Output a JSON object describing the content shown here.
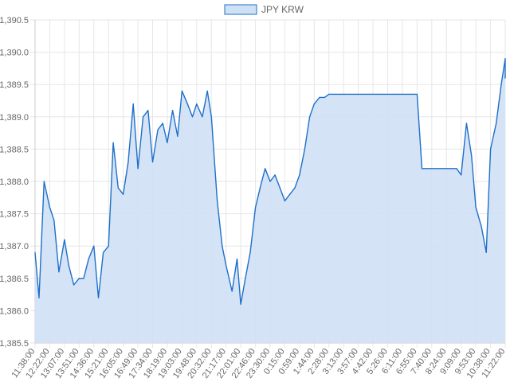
{
  "chart_data": {
    "type": "area",
    "title": "",
    "xlabel": "",
    "ylabel": "",
    "legend": {
      "position": "top-center",
      "entries": [
        "JPY KRW"
      ]
    },
    "grid": true,
    "colors": {
      "line": "#1f6fc9",
      "fill": "#cfe1f5",
      "grid": "#e6e6e6",
      "text": "#666666"
    },
    "ylim": [
      1385.5,
      1390.5
    ],
    "y_ticks": [
      "1,385.5",
      "1,386.0",
      "1,386.5",
      "1,387.0",
      "1,387.5",
      "1,388.0",
      "1,388.5",
      "1,389.0",
      "1,389.5",
      "1,390.0",
      "1,390.5"
    ],
    "x_ticks": [
      "11:38:00",
      "12:22:00",
      "13:07:00",
      "13:51:00",
      "14:36:00",
      "15:21:00",
      "16:05:00",
      "16:49:00",
      "17:34:00",
      "18:19:00",
      "19:03:00",
      "19:48:00",
      "20:32:00",
      "21:17:00",
      "22:01:00",
      "22:46:00",
      "23:30:00",
      "0:15:00",
      "0:59:00",
      "1:44:00",
      "2:28:00",
      "3:13:00",
      "3:57:00",
      "4:42:00",
      "5:26:00",
      "6:11:00",
      "6:55:00",
      "7:40:00",
      "8:24:00",
      "9:09:00",
      "9:53:00",
      "10:38:00",
      "11:22:00"
    ],
    "series": [
      {
        "name": "JPY KRW",
        "x": [
          "11:38:00",
          "11:50:00",
          "12:05:00",
          "12:22:00",
          "12:35:00",
          "12:50:00",
          "13:07:00",
          "13:20:00",
          "13:35:00",
          "13:51:00",
          "14:05:00",
          "14:20:00",
          "14:36:00",
          "14:50:00",
          "15:05:00",
          "15:21:00",
          "15:35:00",
          "15:50:00",
          "16:05:00",
          "16:20:00",
          "16:35:00",
          "16:49:00",
          "17:05:00",
          "17:20:00",
          "17:34:00",
          "17:50:00",
          "18:05:00",
          "18:19:00",
          "18:35:00",
          "18:50:00",
          "19:03:00",
          "19:20:00",
          "19:35:00",
          "19:48:00",
          "20:05:00",
          "20:20:00",
          "20:32:00",
          "20:50:00",
          "21:05:00",
          "21:17:00",
          "21:35:00",
          "21:50:00",
          "22:01:00",
          "22:15:00",
          "22:30:00",
          "22:46:00",
          "23:00:00",
          "23:15:00",
          "23:30:00",
          "23:45:00",
          "0:00:00",
          "0:15:00",
          "0:30:00",
          "0:45:00",
          "0:59:00",
          "1:15:00",
          "1:30:00",
          "1:44:00",
          "2:00:00",
          "2:15:00",
          "2:28:00",
          "2:45:00",
          "3:00:00",
          "3:13:00",
          "3:30:00",
          "3:45:00",
          "3:57:00",
          "4:15:00",
          "4:30:00",
          "4:42:00",
          "5:00:00",
          "5:15:00",
          "5:26:00",
          "5:45:00",
          "6:00:00",
          "6:11:00",
          "6:30:00",
          "6:45:00",
          "6:55:00",
          "7:10:00",
          "7:25:00",
          "7:40:00",
          "7:55:00",
          "8:10:00",
          "8:24:00",
          "8:40:00",
          "8:55:00",
          "9:09:00",
          "9:25:00",
          "9:40:00",
          "9:53:00",
          "10:10:00",
          "10:25:00",
          "10:38:00",
          "10:55:00",
          "11:10:00",
          "11:22:00",
          "11:30:00"
        ],
        "values": [
          1386.9,
          1386.2,
          1388.0,
          1387.6,
          1387.4,
          1386.6,
          1387.1,
          1386.7,
          1386.4,
          1386.5,
          1386.5,
          1386.8,
          1387.0,
          1386.2,
          1386.9,
          1387.0,
          1388.6,
          1387.9,
          1387.8,
          1388.3,
          1389.2,
          1388.2,
          1389.0,
          1389.1,
          1388.3,
          1388.8,
          1388.9,
          1388.6,
          1389.1,
          1388.7,
          1389.4,
          1389.2,
          1389.0,
          1389.2,
          1389.0,
          1389.4,
          1389.0,
          1387.7,
          1387.0,
          1386.7,
          1386.3,
          1386.8,
          1386.1,
          1386.5,
          1386.9,
          1387.6,
          1387.9,
          1388.2,
          1388.0,
          1388.1,
          1387.9,
          1387.7,
          1387.8,
          1387.9,
          1388.1,
          1388.5,
          1389.0,
          1389.2,
          1389.3,
          1389.3,
          1389.35,
          1389.35,
          1389.35,
          1389.35,
          1389.35,
          1389.35,
          1389.35,
          1389.35,
          1389.35,
          1389.35,
          1389.35,
          1389.35,
          1389.35,
          1389.35,
          1389.35,
          1389.35,
          1389.35,
          1389.35,
          1389.35,
          1388.2,
          1388.2,
          1388.2,
          1388.2,
          1388.2,
          1388.2,
          1388.2,
          1388.2,
          1388.1,
          1388.9,
          1388.4,
          1387.6,
          1387.3,
          1386.9,
          1388.5,
          1388.9,
          1389.5,
          1389.9,
          1389.6
        ]
      }
    ]
  }
}
